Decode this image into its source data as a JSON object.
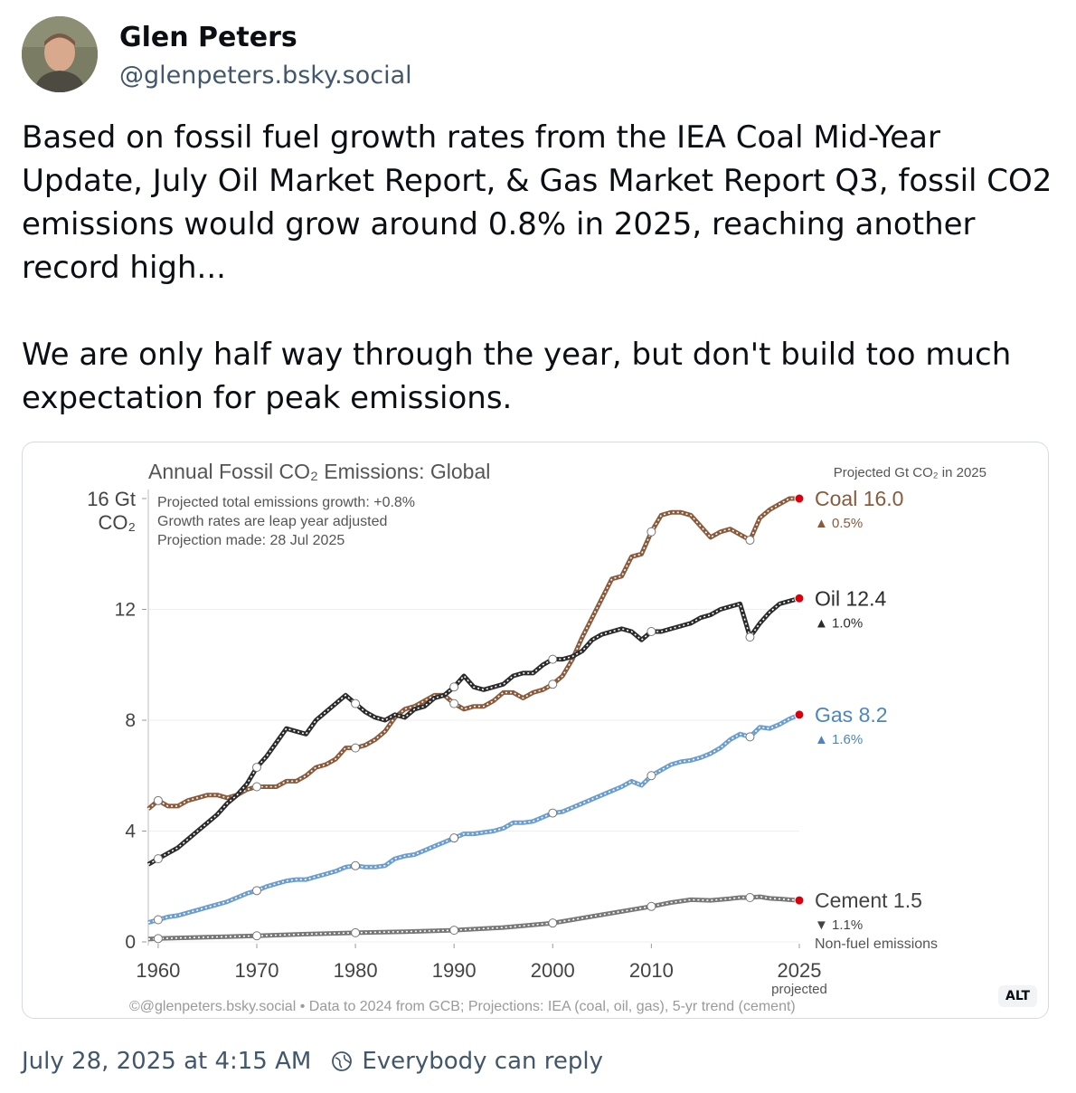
{
  "author": {
    "name": "Glen Peters",
    "handle": "@glenpeters.bsky.social"
  },
  "post": {
    "paragraphs": [
      "Based on fossil fuel growth rates from the IEA Coal Mid-Year Update, July Oil Market Report, & Gas Market Report Q3, fossil CO2 emissions would grow around 0.8% in 2025, reaching another record high...",
      "We are only half way through the year, but don't build too much expectation for peak emissions."
    ],
    "timestamp": "July 28, 2025 at 4:15 AM",
    "reply_setting": "Everybody can reply",
    "alt_badge": "ALT"
  },
  "chart_data": {
    "type": "line",
    "title": "Annual Fossil CO₂ Emissions: Global",
    "ylabel_top": "16 Gt",
    "ylabel_unit": "CO₂",
    "notes": [
      "Projected total emissions growth: +0.8%",
      "Growth rates are leap year adjusted",
      "Projection made: 28 Jul 2025"
    ],
    "right_header": "Projected Gt CO₂ in 2025",
    "ylim": [
      0,
      16
    ],
    "xlim": [
      1959,
      2025
    ],
    "y_ticks": [
      {
        "value": 0,
        "label": "0"
      },
      {
        "value": 4,
        "label": "4"
      },
      {
        "value": 8,
        "label": "8"
      },
      {
        "value": 12,
        "label": "12"
      }
    ],
    "x_ticks": [
      {
        "value": 1960,
        "label": "1960"
      },
      {
        "value": 1970,
        "label": "1970"
      },
      {
        "value": 1980,
        "label": "1980"
      },
      {
        "value": 1990,
        "label": "1990"
      },
      {
        "value": 2000,
        "label": "2000"
      },
      {
        "value": 2010,
        "label": "2010"
      },
      {
        "value": 2025,
        "label": "2025"
      }
    ],
    "x_projected_label": "projected",
    "source": "©@glenpeters.bsky.social  •  Data to 2024 from GCB; Projections: IEA (coal, oil, gas), 5-yr trend (cement)",
    "extra_label": "Non-fuel emissions",
    "series": [
      {
        "name": "Coal",
        "projected_value": "16.0",
        "change": "▲ 0.5%",
        "color": "#8a5a3c",
        "label_color": "#8a5a3c",
        "points": [
          [
            1959,
            4.8
          ],
          [
            1960,
            5.1
          ],
          [
            1961,
            4.9
          ],
          [
            1962,
            4.9
          ],
          [
            1963,
            5.1
          ],
          [
            1964,
            5.2
          ],
          [
            1965,
            5.3
          ],
          [
            1966,
            5.3
          ],
          [
            1967,
            5.2
          ],
          [
            1968,
            5.3
          ],
          [
            1969,
            5.5
          ],
          [
            1970,
            5.6
          ],
          [
            1971,
            5.6
          ],
          [
            1972,
            5.6
          ],
          [
            1973,
            5.8
          ],
          [
            1974,
            5.8
          ],
          [
            1975,
            6.0
          ],
          [
            1976,
            6.3
          ],
          [
            1977,
            6.4
          ],
          [
            1978,
            6.6
          ],
          [
            1979,
            7.0
          ],
          [
            1980,
            7.0
          ],
          [
            1981,
            7.1
          ],
          [
            1982,
            7.3
          ],
          [
            1983,
            7.6
          ],
          [
            1984,
            8.1
          ],
          [
            1985,
            8.4
          ],
          [
            1986,
            8.5
          ],
          [
            1987,
            8.7
          ],
          [
            1988,
            8.9
          ],
          [
            1989,
            8.9
          ],
          [
            1990,
            8.6
          ],
          [
            1991,
            8.4
          ],
          [
            1992,
            8.5
          ],
          [
            1993,
            8.5
          ],
          [
            1994,
            8.7
          ],
          [
            1995,
            9.0
          ],
          [
            1996,
            9.0
          ],
          [
            1997,
            8.8
          ],
          [
            1998,
            9.0
          ],
          [
            1999,
            9.1
          ],
          [
            2000,
            9.3
          ],
          [
            2001,
            9.6
          ],
          [
            2002,
            10.2
          ],
          [
            2003,
            11.0
          ],
          [
            2004,
            11.7
          ],
          [
            2005,
            12.4
          ],
          [
            2006,
            13.1
          ],
          [
            2007,
            13.2
          ],
          [
            2008,
            13.9
          ],
          [
            2009,
            14.0
          ],
          [
            2010,
            14.8
          ],
          [
            2011,
            15.4
          ],
          [
            2012,
            15.5
          ],
          [
            2013,
            15.5
          ],
          [
            2014,
            15.4
          ],
          [
            2015,
            15.0
          ],
          [
            2016,
            14.6
          ],
          [
            2017,
            14.8
          ],
          [
            2018,
            14.9
          ],
          [
            2019,
            14.7
          ],
          [
            2020,
            14.5
          ],
          [
            2021,
            15.3
          ],
          [
            2022,
            15.6
          ],
          [
            2023,
            15.8
          ],
          [
            2024,
            16.0
          ],
          [
            2025,
            16.0
          ]
        ]
      },
      {
        "name": "Oil",
        "projected_value": "12.4",
        "change": "▲ 1.0%",
        "color": "#2b2b2b",
        "label_color": "#2b2b2b",
        "points": [
          [
            1959,
            2.8
          ],
          [
            1960,
            3.0
          ],
          [
            1961,
            3.2
          ],
          [
            1962,
            3.4
          ],
          [
            1963,
            3.7
          ],
          [
            1964,
            4.0
          ],
          [
            1965,
            4.3
          ],
          [
            1966,
            4.6
          ],
          [
            1967,
            5.0
          ],
          [
            1968,
            5.3
          ],
          [
            1969,
            5.7
          ],
          [
            1970,
            6.3
          ],
          [
            1971,
            6.7
          ],
          [
            1972,
            7.2
          ],
          [
            1973,
            7.7
          ],
          [
            1974,
            7.6
          ],
          [
            1975,
            7.5
          ],
          [
            1976,
            8.0
          ],
          [
            1977,
            8.3
          ],
          [
            1978,
            8.6
          ],
          [
            1979,
            8.9
          ],
          [
            1980,
            8.6
          ],
          [
            1981,
            8.3
          ],
          [
            1982,
            8.1
          ],
          [
            1983,
            8.0
          ],
          [
            1984,
            8.2
          ],
          [
            1985,
            8.1
          ],
          [
            1986,
            8.4
          ],
          [
            1987,
            8.5
          ],
          [
            1988,
            8.8
          ],
          [
            1989,
            8.9
          ],
          [
            1990,
            9.2
          ],
          [
            1991,
            9.6
          ],
          [
            1992,
            9.2
          ],
          [
            1993,
            9.1
          ],
          [
            1994,
            9.2
          ],
          [
            1995,
            9.3
          ],
          [
            1996,
            9.6
          ],
          [
            1997,
            9.7
          ],
          [
            1998,
            9.7
          ],
          [
            1999,
            10.0
          ],
          [
            2000,
            10.2
          ],
          [
            2001,
            10.2
          ],
          [
            2002,
            10.3
          ],
          [
            2003,
            10.5
          ],
          [
            2004,
            10.9
          ],
          [
            2005,
            11.1
          ],
          [
            2006,
            11.2
          ],
          [
            2007,
            11.3
          ],
          [
            2008,
            11.2
          ],
          [
            2009,
            10.9
          ],
          [
            2010,
            11.2
          ],
          [
            2011,
            11.2
          ],
          [
            2012,
            11.3
          ],
          [
            2013,
            11.4
          ],
          [
            2014,
            11.5
          ],
          [
            2015,
            11.7
          ],
          [
            2016,
            11.8
          ],
          [
            2017,
            12.0
          ],
          [
            2018,
            12.1
          ],
          [
            2019,
            12.2
          ],
          [
            2020,
            11.0
          ],
          [
            2021,
            11.5
          ],
          [
            2022,
            11.9
          ],
          [
            2023,
            12.2
          ],
          [
            2024,
            12.3
          ],
          [
            2025,
            12.4
          ]
        ]
      },
      {
        "name": "Gas",
        "projected_value": "8.2",
        "change": "▲ 1.6%",
        "color": "#6b9dcf",
        "label_color": "#4b86c0",
        "points": [
          [
            1959,
            0.7
          ],
          [
            1960,
            0.8
          ],
          [
            1961,
            0.9
          ],
          [
            1962,
            0.95
          ],
          [
            1963,
            1.05
          ],
          [
            1964,
            1.15
          ],
          [
            1965,
            1.25
          ],
          [
            1966,
            1.35
          ],
          [
            1967,
            1.45
          ],
          [
            1968,
            1.6
          ],
          [
            1969,
            1.75
          ],
          [
            1970,
            1.85
          ],
          [
            1971,
            2.0
          ],
          [
            1972,
            2.1
          ],
          [
            1973,
            2.2
          ],
          [
            1974,
            2.25
          ],
          [
            1975,
            2.25
          ],
          [
            1976,
            2.35
          ],
          [
            1977,
            2.45
          ],
          [
            1978,
            2.55
          ],
          [
            1979,
            2.7
          ],
          [
            1980,
            2.75
          ],
          [
            1981,
            2.7
          ],
          [
            1982,
            2.7
          ],
          [
            1983,
            2.75
          ],
          [
            1984,
            3.0
          ],
          [
            1985,
            3.1
          ],
          [
            1986,
            3.15
          ],
          [
            1987,
            3.3
          ],
          [
            1988,
            3.45
          ],
          [
            1989,
            3.6
          ],
          [
            1990,
            3.75
          ],
          [
            1991,
            3.9
          ],
          [
            1992,
            3.9
          ],
          [
            1993,
            3.95
          ],
          [
            1994,
            4.0
          ],
          [
            1995,
            4.1
          ],
          [
            1996,
            4.3
          ],
          [
            1997,
            4.3
          ],
          [
            1998,
            4.35
          ],
          [
            1999,
            4.5
          ],
          [
            2000,
            4.65
          ],
          [
            2001,
            4.7
          ],
          [
            2002,
            4.85
          ],
          [
            2003,
            5.0
          ],
          [
            2004,
            5.15
          ],
          [
            2005,
            5.3
          ],
          [
            2006,
            5.45
          ],
          [
            2007,
            5.6
          ],
          [
            2008,
            5.8
          ],
          [
            2009,
            5.65
          ],
          [
            2010,
            6.0
          ],
          [
            2011,
            6.2
          ],
          [
            2012,
            6.4
          ],
          [
            2013,
            6.5
          ],
          [
            2014,
            6.55
          ],
          [
            2015,
            6.65
          ],
          [
            2016,
            6.8
          ],
          [
            2017,
            7.0
          ],
          [
            2018,
            7.3
          ],
          [
            2019,
            7.5
          ],
          [
            2020,
            7.4
          ],
          [
            2021,
            7.75
          ],
          [
            2022,
            7.7
          ],
          [
            2023,
            7.85
          ],
          [
            2024,
            8.05
          ],
          [
            2025,
            8.2
          ]
        ]
      },
      {
        "name": "Cement",
        "projected_value": "1.5",
        "change": "▼ 1.1%",
        "color": "#777777",
        "label_color": "#444444",
        "points": [
          [
            1959,
            0.1
          ],
          [
            1960,
            0.12
          ],
          [
            1965,
            0.17
          ],
          [
            1970,
            0.22
          ],
          [
            1975,
            0.28
          ],
          [
            1980,
            0.33
          ],
          [
            1985,
            0.37
          ],
          [
            1990,
            0.42
          ],
          [
            1995,
            0.52
          ],
          [
            2000,
            0.68
          ],
          [
            2005,
            0.98
          ],
          [
            2010,
            1.28
          ],
          [
            2012,
            1.42
          ],
          [
            2014,
            1.52
          ],
          [
            2016,
            1.5
          ],
          [
            2018,
            1.56
          ],
          [
            2019,
            1.6
          ],
          [
            2020,
            1.6
          ],
          [
            2021,
            1.63
          ],
          [
            2022,
            1.57
          ],
          [
            2023,
            1.55
          ],
          [
            2024,
            1.52
          ],
          [
            2025,
            1.5
          ]
        ]
      }
    ]
  }
}
